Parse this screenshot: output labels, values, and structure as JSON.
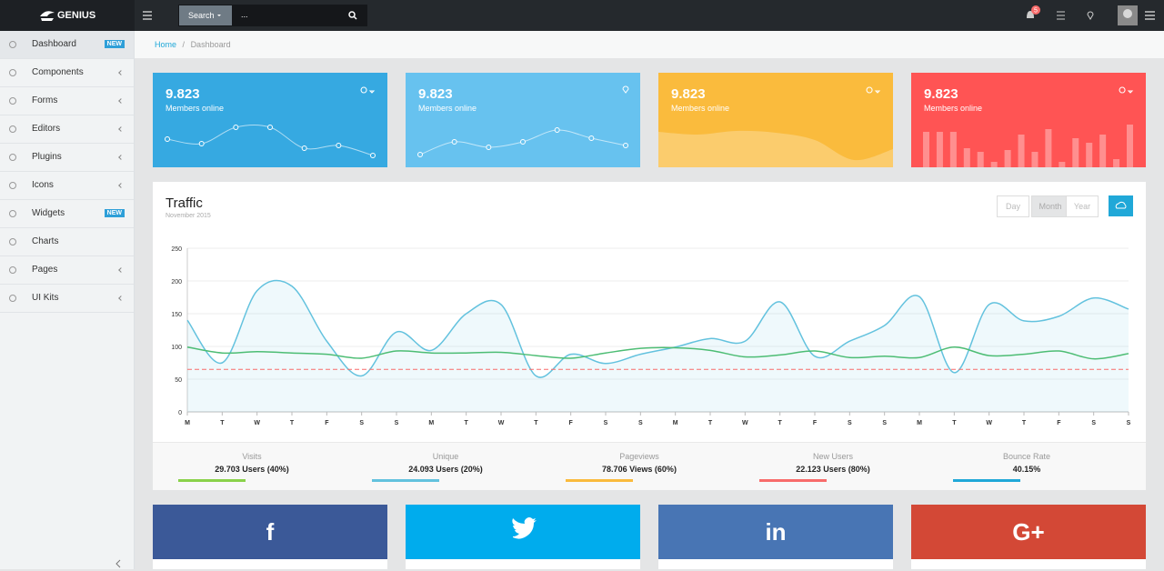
{
  "topbar": {
    "brand": "GENIUS",
    "search_button": "Search",
    "search_placeholder": "...",
    "notifications": "5"
  },
  "sidebar": {
    "items": [
      {
        "label": "Dashboard",
        "badge": "NEW",
        "active": true
      },
      {
        "label": "Components",
        "submenu": true
      },
      {
        "label": "Forms",
        "submenu": true
      },
      {
        "label": "Editors",
        "submenu": true
      },
      {
        "label": "Plugins",
        "submenu": true
      },
      {
        "label": "Icons",
        "submenu": true
      },
      {
        "label": "Widgets",
        "badge": "NEW"
      },
      {
        "label": "Charts"
      },
      {
        "label": "Pages",
        "submenu": true
      },
      {
        "label": "UI Kits",
        "submenu": true
      }
    ]
  },
  "breadcrumb": [
    "Home",
    "Dashboard"
  ],
  "cards": [
    {
      "value": "9.823",
      "label": "Members online",
      "color": "#36a9e1",
      "chart": "line",
      "points": [
        31,
        26,
        44,
        44,
        21,
        24,
        13
      ]
    },
    {
      "value": "9.823",
      "label": "Members online",
      "color": "#67c2ef",
      "chart": "line",
      "points": [
        14,
        28,
        22,
        28,
        41,
        32,
        24
      ]
    },
    {
      "value": "9.823",
      "label": "Members online",
      "color": "#fabb3d",
      "chart": "area",
      "points": [
        39,
        36,
        40,
        38,
        30,
        8,
        20
      ]
    },
    {
      "value": "9.823",
      "label": "Members online",
      "color": "#ff5454",
      "chart": "bar",
      "points": [
        39,
        39,
        39,
        21,
        17,
        6,
        19,
        36,
        17,
        42,
        6,
        32,
        27,
        36,
        9,
        47
      ]
    }
  ],
  "traffic": {
    "title": "Traffic",
    "subtitle": "November 2015",
    "ranges": [
      "Day",
      "Month",
      "Year"
    ],
    "active_range": 1,
    "stats": [
      {
        "label": "Visits",
        "value": "29.703 Users (40%)",
        "color": "#8ad24a"
      },
      {
        "label": "Unique",
        "value": "24.093 Users (20%)",
        "color": "#63c2de"
      },
      {
        "label": "Pageviews",
        "value": "78.706 Views (60%)",
        "color": "#fabb3d"
      },
      {
        "label": "New Users",
        "value": "22.123 Users (80%)",
        "color": "#f86c6b"
      },
      {
        "label": "Bounce Rate",
        "value": "40.15%",
        "color": "#20a8d8"
      }
    ]
  },
  "chart_data": {
    "type": "line",
    "categories": [
      "M",
      "T",
      "W",
      "T",
      "F",
      "S",
      "S",
      "M",
      "T",
      "W",
      "T",
      "F",
      "S",
      "S",
      "M",
      "T",
      "W",
      "T",
      "F",
      "S",
      "S",
      "M",
      "T",
      "W",
      "T",
      "F",
      "S",
      "S"
    ],
    "series": [
      {
        "color": "#63c2de",
        "area": true,
        "values": [
          140,
          75,
          185,
          192,
          108,
          55,
          122,
          94,
          150,
          164,
          55,
          88,
          74,
          88,
          99,
          112,
          108,
          168,
          85,
          108,
          132,
          176,
          60,
          164,
          139,
          146,
          174,
          157
        ]
      },
      {
        "color": "#4dbd74",
        "values": [
          99,
          90,
          92,
          90,
          88,
          82,
          93,
          90,
          90,
          91,
          86,
          82,
          90,
          97,
          98,
          94,
          84,
          87,
          93,
          83,
          85,
          83,
          99,
          86,
          88,
          93,
          81,
          89
        ]
      },
      {
        "color": "#f86c6b",
        "dashed": true,
        "values": [
          65,
          65,
          65,
          65,
          65,
          65,
          65,
          65,
          65,
          65,
          65,
          65,
          65,
          65,
          65,
          65,
          65,
          65,
          65,
          65,
          65,
          65,
          65,
          65,
          65,
          65,
          65,
          65
        ]
      }
    ],
    "ylim": [
      0,
      250
    ],
    "yticks": [
      0,
      50,
      100,
      150,
      200,
      250
    ],
    "grid": true
  },
  "social": [
    {
      "label": "f",
      "color": "#3b5998"
    },
    {
      "color": "#00aced"
    },
    {
      "label": "in",
      "color": "#4875b4"
    },
    {
      "label": "G+",
      "color": "#d34836"
    }
  ]
}
